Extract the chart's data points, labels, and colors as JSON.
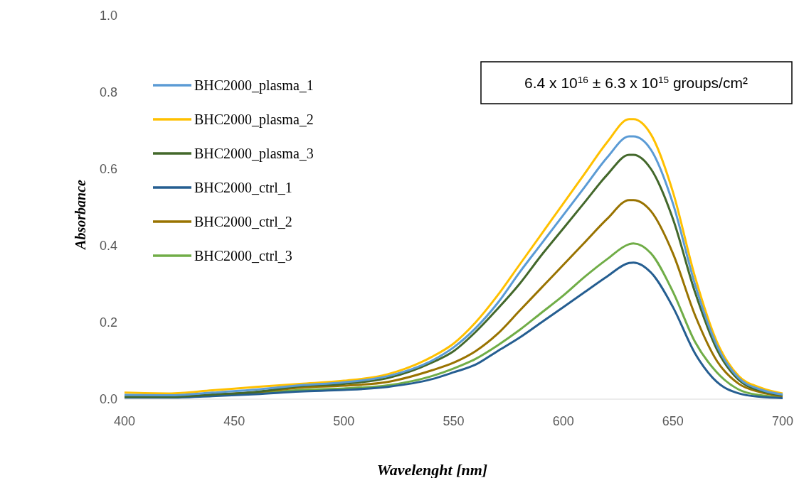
{
  "chart_data": {
    "type": "line",
    "xlabel": "Wavelenght [nm]",
    "ylabel": "Absorbance",
    "annotations": [
      "6.4 x 10$^{16}$ ± 6.3 x 10$^{15}$ groups/cm²"
    ],
    "x": [
      400,
      420,
      440,
      460,
      480,
      500,
      520,
      540,
      550,
      560,
      570,
      580,
      590,
      600,
      610,
      620,
      630,
      632,
      640,
      650,
      660,
      670,
      680,
      690,
      700
    ],
    "series": [
      {
        "name": "BHC2000_plasma_1",
        "color": "#5b9bd5",
        "values": [
          0.011,
          0.01,
          0.017,
          0.025,
          0.036,
          0.044,
          0.06,
          0.1,
          0.135,
          0.185,
          0.25,
          0.33,
          0.405,
          0.48,
          0.555,
          0.63,
          0.685,
          0.685,
          0.65,
          0.51,
          0.3,
          0.14,
          0.055,
          0.025,
          0.012
        ]
      },
      {
        "name": "BHC2000_plasma_2",
        "color": "#ffc000",
        "values": [
          0.017,
          0.015,
          0.023,
          0.032,
          0.04,
          0.048,
          0.065,
          0.11,
          0.145,
          0.2,
          0.27,
          0.35,
          0.43,
          0.51,
          0.59,
          0.67,
          0.73,
          0.73,
          0.69,
          0.54,
          0.32,
          0.15,
          0.06,
          0.03,
          0.015
        ]
      },
      {
        "name": "BHC2000_plasma_3",
        "color": "#43682b",
        "values": [
          0.006,
          0.006,
          0.012,
          0.019,
          0.034,
          0.04,
          0.055,
          0.095,
          0.125,
          0.175,
          0.235,
          0.3,
          0.375,
          0.445,
          0.515,
          0.585,
          0.637,
          0.637,
          0.6,
          0.47,
          0.28,
          0.13,
          0.05,
          0.022,
          0.01
        ]
      },
      {
        "name": "BHC2000_ctrl_1",
        "color": "#255e91",
        "values": [
          0.004,
          0.004,
          0.008,
          0.013,
          0.02,
          0.024,
          0.032,
          0.052,
          0.07,
          0.09,
          0.125,
          0.16,
          0.2,
          0.24,
          0.28,
          0.32,
          0.355,
          0.356,
          0.33,
          0.24,
          0.12,
          0.045,
          0.015,
          0.006,
          0.003
        ]
      },
      {
        "name": "BHC2000_ctrl_2",
        "color": "#997300",
        "values": [
          null,
          null,
          0.012,
          0.018,
          0.03,
          0.035,
          0.045,
          0.075,
          0.095,
          0.125,
          0.17,
          0.23,
          0.29,
          0.35,
          0.41,
          0.47,
          0.519,
          0.519,
          0.49,
          0.38,
          0.22,
          0.1,
          0.04,
          0.018,
          0.008
        ]
      },
      {
        "name": "BHC2000_ctrl_3",
        "color": "#70ad47",
        "values": [
          0.005,
          0.005,
          0.01,
          0.015,
          0.024,
          0.028,
          0.036,
          0.06,
          0.08,
          0.105,
          0.14,
          0.18,
          0.225,
          0.27,
          0.32,
          0.365,
          0.404,
          0.406,
          0.38,
          0.28,
          0.15,
          0.07,
          0.025,
          0.01,
          0.005
        ]
      }
    ],
    "xlim": [
      400,
      700
    ],
    "xticks": [
      400,
      450,
      500,
      550,
      600,
      650,
      700
    ],
    "ylim": [
      0,
      1
    ],
    "yticks": [
      {
        "value": 0,
        "label": "0.0"
      },
      {
        "value": 0.2,
        "label": "0.2"
      },
      {
        "value": 0.4,
        "label": "0.4"
      },
      {
        "value": 0.6,
        "label": "0.6"
      },
      {
        "value": 0.8,
        "label": "0.8"
      },
      {
        "value": 1,
        "label": "1.0"
      }
    ],
    "legend": "top left",
    "grid": false,
    "marker": "none",
    "line_style": "solid"
  }
}
